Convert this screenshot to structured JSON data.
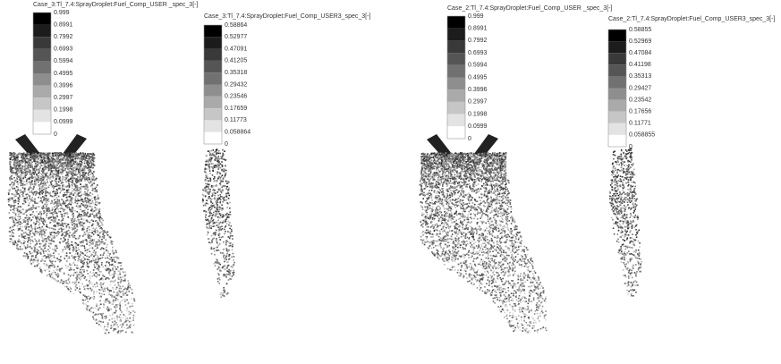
{
  "legends": [
    {
      "title": "Case_3:Tl_7.4:SprayDroplet:Fuel_Comp_USER _spec_3[-]",
      "ticks": [
        "0.999",
        "0.8991",
        "0.7992",
        "0.6993",
        "0.5994",
        "0.4995",
        "0.3996",
        "0.2997",
        "0.1998",
        "0.0999",
        "0"
      ]
    },
    {
      "title": "Case_3:Tl_7.4:SprayDroplet:Fuel_Comp_USER3_spec_3[-]",
      "ticks": [
        "0.58864",
        "0.52977",
        "0.47091",
        "0.41205",
        "0.35318",
        "0.29432",
        "0.23546",
        "0.17659",
        "0.11773",
        "0.058864",
        "0"
      ]
    },
    {
      "title": "Case_2:Tl_7.4:SprayDroplet:Fuel_Comp_USER _spec_3[-]",
      "ticks": [
        "0.999",
        "0.8991",
        "0.7992",
        "0.6993",
        "0.5994",
        "0.4995",
        "0.3996",
        "0.2997",
        "0.1998",
        "0.0999",
        "0"
      ]
    },
    {
      "title": "Case_2:Tl_7.4:SprayDroplet:Fuel_Comp_USER3_spec_3[-]",
      "ticks": [
        "0.58855",
        "0.52969",
        "0.47084",
        "0.41198",
        "0.35313",
        "0.29427",
        "0.23542",
        "0.17656",
        "0.11771",
        "0.058855",
        "0"
      ]
    }
  ]
}
